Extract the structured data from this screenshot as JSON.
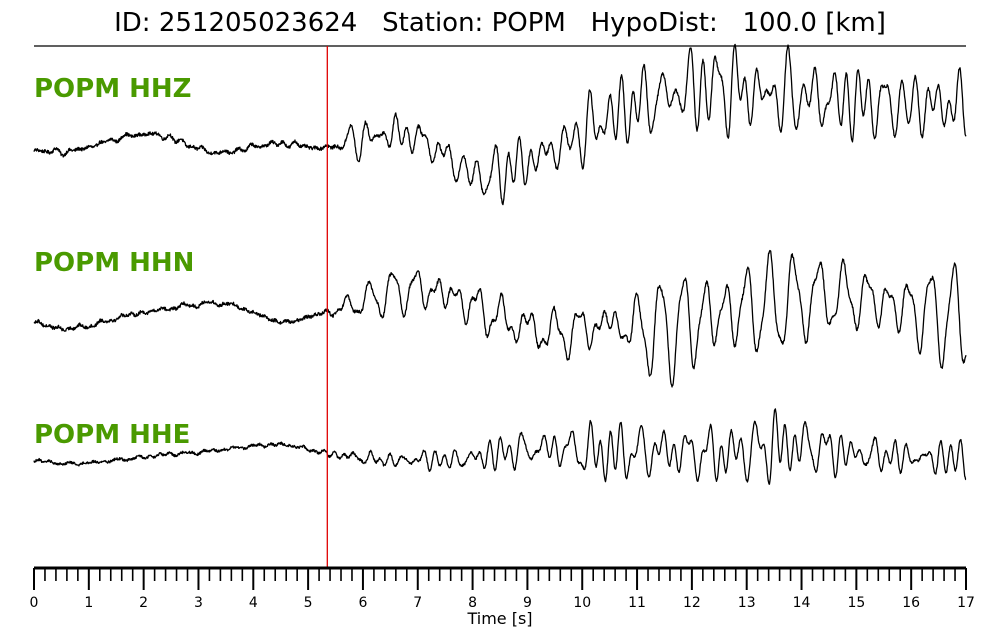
{
  "header": {
    "title": "ID: 251205023624   Station: POPM   HypoDist:   100.0 [km]"
  },
  "colors": {
    "trace": "#000000",
    "label": "#4a9a00",
    "pick": "#e00000"
  },
  "chart_data": {
    "type": "line",
    "title": "ID: 251205023624   Station: POPM   HypoDist:   100.0 [km]",
    "xlabel": "Time [s]",
    "ylabel": "",
    "xlim": [
      0,
      17
    ],
    "x_ticks": [
      "0",
      "1",
      "2",
      "3",
      "4",
      "5",
      "6",
      "7",
      "8",
      "9",
      "10",
      "11",
      "12",
      "13",
      "14",
      "15",
      "16",
      "17"
    ],
    "minor_tick_step": 0.2,
    "grid": false,
    "pick_time": 5.35,
    "series": [
      {
        "name": "POPM HHZ",
        "times": [
          0,
          0.25,
          0.5,
          0.75,
          1.0,
          1.25,
          1.5,
          1.75,
          2.0,
          2.25,
          2.5,
          2.75,
          3.0,
          3.25,
          3.5,
          3.75,
          4.0,
          4.25,
          4.5,
          4.75,
          5.0,
          5.25,
          5.5,
          5.75,
          6.0,
          6.25,
          6.5,
          6.75,
          7.0,
          7.25,
          7.5,
          7.75,
          8.0,
          8.25,
          8.5,
          8.75,
          9.0,
          9.25,
          9.5,
          9.75,
          10.0,
          10.25,
          10.5,
          10.75,
          11.0,
          11.25,
          11.5,
          11.75,
          12.0,
          12.25,
          12.5,
          12.75,
          13.0,
          13.25,
          13.5,
          13.75,
          14.0,
          14.25,
          14.5,
          14.75,
          15.0,
          15.25,
          15.5,
          15.75,
          16.0,
          16.25,
          16.5,
          16.75,
          17.0
        ],
        "envelope": [
          0.05,
          0.05,
          0.05,
          0.05,
          0.05,
          0.05,
          0.05,
          0.05,
          0.05,
          0.05,
          0.05,
          0.05,
          0.05,
          0.05,
          0.05,
          0.05,
          0.05,
          0.05,
          0.05,
          0.05,
          0.05,
          0.06,
          0.28,
          0.3,
          0.32,
          0.34,
          0.36,
          0.4,
          0.42,
          0.4,
          0.38,
          0.38,
          0.42,
          0.46,
          0.5,
          0.48,
          0.46,
          0.46,
          0.48,
          0.5,
          0.52,
          0.55,
          0.6,
          0.62,
          0.66,
          0.72,
          0.8,
          0.86,
          0.9,
          0.92,
          0.9,
          0.86,
          0.82,
          0.8,
          0.8,
          0.82,
          0.82,
          0.8,
          0.76,
          0.72,
          0.7,
          0.66,
          0.62,
          0.6,
          0.58,
          0.56,
          0.55,
          0.55,
          0.55
        ],
        "trend": [
          0.0,
          -0.02,
          -0.04,
          -0.01,
          0.05,
          0.13,
          0.2,
          0.26,
          0.29,
          0.28,
          0.22,
          0.12,
          0.02,
          -0.04,
          -0.05,
          0.0,
          0.06,
          0.1,
          0.12,
          0.1,
          0.06,
          0.02,
          0.1,
          0.16,
          0.2,
          0.26,
          0.3,
          0.3,
          0.22,
          0.08,
          -0.1,
          -0.3,
          -0.45,
          -0.5,
          -0.42,
          -0.3,
          -0.22,
          -0.1,
          0.02,
          0.14,
          0.3,
          0.48,
          0.6,
          0.72,
          0.82,
          0.9,
          0.98,
          1.05,
          1.1,
          1.14,
          1.14,
          1.12,
          1.08,
          1.02,
          1.0,
          1.0,
          0.98,
          0.95,
          0.92,
          0.9,
          0.88,
          0.86,
          0.84,
          0.82,
          0.82,
          0.82,
          0.82,
          0.82,
          0.82
        ]
      },
      {
        "name": "POPM HHN",
        "times": [
          0,
          0.25,
          0.5,
          0.75,
          1.0,
          1.25,
          1.5,
          1.75,
          2.0,
          2.25,
          2.5,
          2.75,
          3.0,
          3.25,
          3.5,
          3.75,
          4.0,
          4.25,
          4.5,
          4.75,
          5.0,
          5.25,
          5.5,
          5.75,
          6.0,
          6.25,
          6.5,
          6.75,
          7.0,
          7.25,
          7.5,
          7.75,
          8.0,
          8.25,
          8.5,
          8.75,
          9.0,
          9.25,
          9.5,
          9.75,
          10.0,
          10.25,
          10.5,
          10.75,
          11.0,
          11.25,
          11.5,
          11.75,
          12.0,
          12.25,
          12.5,
          12.75,
          13.0,
          13.25,
          13.5,
          13.75,
          14.0,
          14.25,
          14.5,
          14.75,
          15.0,
          15.25,
          15.5,
          15.75,
          16.0,
          16.25,
          16.5,
          16.75,
          17.0
        ],
        "envelope": [
          0.05,
          0.05,
          0.05,
          0.05,
          0.05,
          0.05,
          0.05,
          0.05,
          0.05,
          0.05,
          0.05,
          0.05,
          0.05,
          0.05,
          0.05,
          0.05,
          0.05,
          0.05,
          0.05,
          0.05,
          0.05,
          0.06,
          0.18,
          0.22,
          0.26,
          0.32,
          0.38,
          0.44,
          0.5,
          0.56,
          0.62,
          0.66,
          0.7,
          0.72,
          0.72,
          0.72,
          0.72,
          0.76,
          0.8,
          0.82,
          0.82,
          0.84,
          0.86,
          0.92,
          1.0,
          1.06,
          1.1,
          1.14,
          1.16,
          1.16,
          1.14,
          1.12,
          1.1,
          1.08,
          1.06,
          1.04,
          1.02,
          1.0,
          0.98,
          0.96,
          0.94,
          0.92,
          0.9,
          0.9,
          0.88,
          0.88,
          0.88,
          0.88,
          0.88
        ],
        "trend": [
          -0.05,
          -0.15,
          -0.2,
          -0.18,
          -0.14,
          -0.08,
          0.0,
          0.06,
          0.1,
          0.14,
          0.18,
          0.22,
          0.25,
          0.27,
          0.26,
          0.2,
          0.1,
          0.0,
          -0.08,
          -0.06,
          0.02,
          0.08,
          0.14,
          0.22,
          0.3,
          0.38,
          0.46,
          0.5,
          0.52,
          0.5,
          0.44,
          0.34,
          0.22,
          0.1,
          0.0,
          -0.1,
          -0.18,
          -0.24,
          -0.28,
          -0.26,
          -0.2,
          -0.14,
          -0.1,
          -0.14,
          -0.2,
          -0.22,
          -0.2,
          -0.14,
          -0.06,
          0.02,
          0.08,
          0.14,
          0.18,
          0.22,
          0.26,
          0.3,
          0.34,
          0.38,
          0.4,
          0.4,
          0.38,
          0.34,
          0.28,
          0.22,
          0.16,
          0.1,
          0.06,
          0.02,
          0.0
        ]
      },
      {
        "name": "POPM HHE",
        "times": [
          0,
          0.25,
          0.5,
          0.75,
          1.0,
          1.25,
          1.5,
          1.75,
          2.0,
          2.25,
          2.5,
          2.75,
          3.0,
          3.25,
          3.5,
          3.75,
          4.0,
          4.25,
          4.5,
          4.75,
          5.0,
          5.25,
          5.5,
          5.75,
          6.0,
          6.25,
          6.5,
          6.75,
          7.0,
          7.25,
          7.5,
          7.75,
          8.0,
          8.25,
          8.5,
          8.75,
          9.0,
          9.25,
          9.5,
          9.75,
          10.0,
          10.25,
          10.5,
          10.75,
          11.0,
          11.25,
          11.5,
          11.75,
          12.0,
          12.25,
          12.5,
          12.75,
          13.0,
          13.25,
          13.5,
          13.75,
          14.0,
          14.25,
          14.5,
          14.75,
          15.0,
          15.25,
          15.5,
          15.75,
          16.0,
          16.25,
          16.5,
          16.75,
          17.0
        ],
        "envelope": [
          0.04,
          0.04,
          0.04,
          0.04,
          0.04,
          0.04,
          0.04,
          0.04,
          0.04,
          0.04,
          0.04,
          0.04,
          0.04,
          0.04,
          0.04,
          0.04,
          0.04,
          0.04,
          0.04,
          0.04,
          0.04,
          0.05,
          0.12,
          0.16,
          0.2,
          0.24,
          0.26,
          0.28,
          0.3,
          0.32,
          0.34,
          0.36,
          0.4,
          0.44,
          0.48,
          0.52,
          0.56,
          0.6,
          0.64,
          0.66,
          0.66,
          0.66,
          0.66,
          0.64,
          0.62,
          0.6,
          0.58,
          0.58,
          0.6,
          0.64,
          0.68,
          0.72,
          0.76,
          0.8,
          0.82,
          0.82,
          0.8,
          0.78,
          0.74,
          0.7,
          0.66,
          0.62,
          0.58,
          0.56,
          0.54,
          0.52,
          0.5,
          0.5,
          0.5
        ],
        "trend": [
          -0.05,
          -0.1,
          -0.14,
          -0.14,
          -0.12,
          -0.09,
          -0.05,
          -0.02,
          0.02,
          0.06,
          0.1,
          0.12,
          0.14,
          0.18,
          0.22,
          0.26,
          0.3,
          0.33,
          0.34,
          0.3,
          0.22,
          0.14,
          0.08,
          0.04,
          0.0,
          -0.04,
          -0.06,
          -0.06,
          -0.04,
          -0.04,
          -0.06,
          -0.04,
          0.0,
          0.06,
          0.12,
          0.18,
          0.22,
          0.24,
          0.24,
          0.22,
          0.18,
          0.14,
          0.12,
          0.14,
          0.16,
          0.18,
          0.18,
          0.16,
          0.12,
          0.1,
          0.1,
          0.12,
          0.18,
          0.24,
          0.3,
          0.32,
          0.3,
          0.26,
          0.2,
          0.14,
          0.1,
          0.08,
          0.06,
          0.04,
          0.02,
          0.0,
          0.0,
          0.0,
          0.0
        ]
      }
    ]
  }
}
